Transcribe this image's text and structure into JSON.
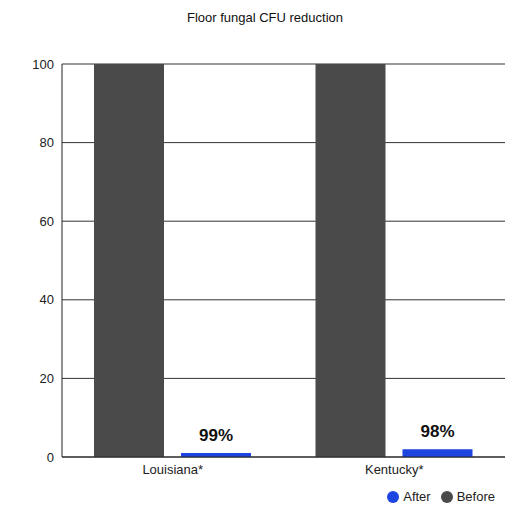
{
  "chart_data": {
    "type": "bar",
    "title": "Floor fungal CFU reduction",
    "categories": [
      "Louisiana*",
      "Kentucky*"
    ],
    "series": [
      {
        "name": "Before",
        "color": "#4a4a4a",
        "values": [
          100,
          100
        ]
      },
      {
        "name": "After",
        "color": "#1f45e0",
        "values": [
          1,
          2
        ]
      }
    ],
    "annotations": [
      "99%",
      "98%"
    ],
    "ylim": [
      0,
      100
    ],
    "yticks": [
      0,
      20,
      40,
      60,
      80,
      100
    ],
    "grid": true,
    "legend": "lower right"
  }
}
